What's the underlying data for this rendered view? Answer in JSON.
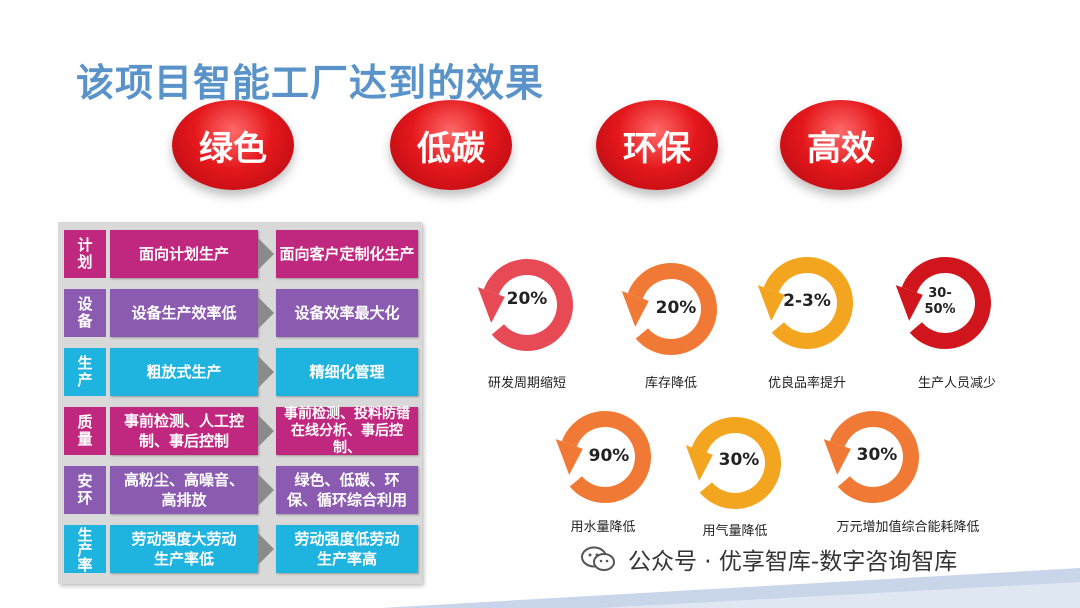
{
  "title": "该项目智能工厂达到的效果",
  "banners": [
    "绿色",
    "低碳",
    "环保",
    "高效"
  ],
  "rows": [
    {
      "category": "计划",
      "before": "面向计划生产",
      "after": "面向客户定制化生产",
      "color": "#c0287f"
    },
    {
      "category": "设备",
      "before": "设备生产效率低",
      "after": "设备效率最大化",
      "color": "#8a5bb0"
    },
    {
      "category": "生产",
      "before": "粗放式生产",
      "after": "精细化管理",
      "color": "#1fb3e0"
    },
    {
      "category": "质量",
      "before": "事前检测、人工控制、事后控制",
      "after": "事前检测、投料防错在线分析、事后控制、",
      "color": "#c0287f"
    },
    {
      "category": "安环",
      "before": "高粉尘、高噪音、高排放",
      "after": "绿色、低碳、环保、循环综合利用",
      "color": "#8a5bb0"
    },
    {
      "category": "生产率",
      "before": "劳动强度大劳动生产率低",
      "after": "劳动强度低劳动生产率高",
      "color": "#1fb3e0"
    }
  ],
  "metrics": [
    {
      "value": "20%",
      "label": "研发周期缩短",
      "color": "#e84a55"
    },
    {
      "value": "20%",
      "label": "库存降低",
      "color": "#f07a35"
    },
    {
      "value": "2-3%",
      "label": "优良品率提升",
      "color": "#f3a51f"
    },
    {
      "value": "30-50%",
      "label": "生产人员减少",
      "color": "#d0151c"
    },
    {
      "value": "90%",
      "label": "用水量降低",
      "color": "#f07a35"
    },
    {
      "value": "30%",
      "label": "用气量降低",
      "color": "#f3a51f"
    },
    {
      "value": "30%",
      "label": "万元增加值综合能耗降低",
      "color": "#f07a35"
    }
  ],
  "watermark": "公众号 · 优享智库-数字咨询智库"
}
